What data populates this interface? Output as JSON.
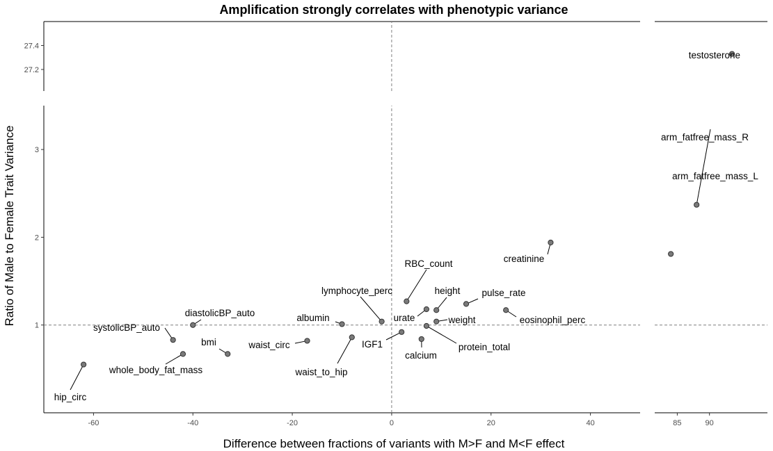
{
  "chart_data": {
    "type": "scatter",
    "title": "Amplification strongly correlates with phenotypic variance",
    "xlabel": "Difference between fractions of variants with M>F and M<F effect",
    "ylabel": "Ratio of Male to Female Trait Variance",
    "x_break": {
      "main_range": [
        -70,
        50
      ],
      "right_range": [
        81.5,
        99
      ]
    },
    "y_break": {
      "main_range": [
        0.0,
        3.5
      ],
      "top_range": [
        27.02,
        27.6
      ]
    },
    "x_ticks_main": [
      -60,
      -40,
      -20,
      0,
      20,
      40
    ],
    "x_ticks_right": [
      85,
      90
    ],
    "y_ticks_main": [
      1,
      2,
      3
    ],
    "y_ticks_top": [
      27.2,
      27.4
    ],
    "reference_lines": {
      "x": 0,
      "y": 1
    },
    "grid": false,
    "legend": "none",
    "colors": {
      "point_fill": "#7a7a7a",
      "point_stroke": "#333333",
      "ref_line": "#7f7f7f"
    },
    "points": [
      {
        "label": "testosterone",
        "x": 93.5,
        "y": 27.33
      },
      {
        "label": "arm_fatfree_mass_R",
        "x": 88,
        "y": 2.37
      },
      {
        "label": "arm_fatfree_mass_L",
        "x": 84,
        "y": 1.81
      },
      {
        "label": "creatinine",
        "x": 32,
        "y": 1.94
      },
      {
        "label": "RBC_count",
        "x": 3,
        "y": 1.27
      },
      {
        "label": "lymphocyte_perc",
        "x": -2,
        "y": 1.04
      },
      {
        "label": "height",
        "x": 9,
        "y": 1.17
      },
      {
        "label": "pulse_rate",
        "x": 15,
        "y": 1.24
      },
      {
        "label": "eosinophil_perc",
        "x": 23,
        "y": 1.17
      },
      {
        "label": "urate",
        "x": 7,
        "y": 1.18
      },
      {
        "label": "weight",
        "x": 9,
        "y": 1.04
      },
      {
        "label": "protein_total",
        "x": 7,
        "y": 0.99
      },
      {
        "label": "calcium",
        "x": 6,
        "y": 0.84
      },
      {
        "label": "IGF1",
        "x": 2,
        "y": 0.92
      },
      {
        "label": "albumin",
        "x": -10,
        "y": 1.01
      },
      {
        "label": "waist_circ",
        "x": -17,
        "y": 0.82
      },
      {
        "label": "waist_to_hip",
        "x": -8,
        "y": 0.86
      },
      {
        "label": "diastolicBP_auto",
        "x": -40,
        "y": 1.0
      },
      {
        "label": "systolicBP_auto",
        "x": -44,
        "y": 0.83
      },
      {
        "label": "bmi",
        "x": -33,
        "y": 0.67
      },
      {
        "label": "whole_body_fat_mass",
        "x": -42,
        "y": 0.67
      },
      {
        "label": "hip_circ",
        "x": -62,
        "y": 0.55
      }
    ]
  }
}
